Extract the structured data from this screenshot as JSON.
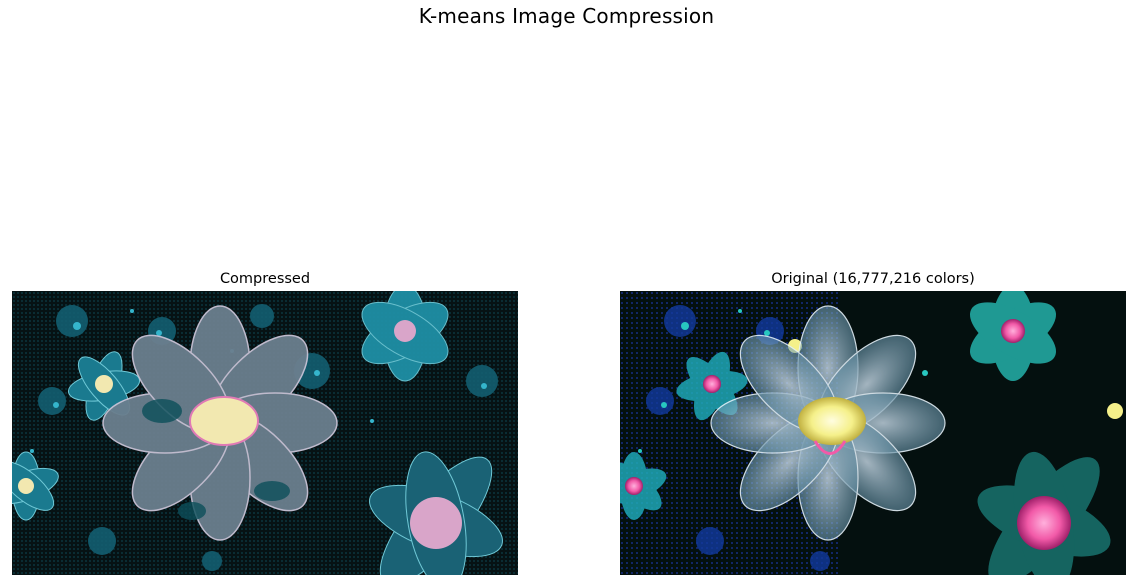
{
  "figure": {
    "suptitle": "K-means Image Compression"
  },
  "panels": {
    "compressed": {
      "title": "Compressed",
      "image_description": "posterized fractal flowers, limited teal/pink/cream palette"
    },
    "original": {
      "title": "Original (16,777,216 colors)",
      "image_description": "full-color fractal flowers with glowing teal, pink, yellow and blue tones"
    }
  },
  "colors": {
    "background_dark": "#061214",
    "teal": "#1f8fa5",
    "teal_light": "#6fc8d6",
    "petal_grey": "#6b7f8e",
    "pink": "#e07ab5",
    "cream": "#f2e8b0",
    "orig_teal": "#28c7c0",
    "orig_pink": "#f25aa8",
    "orig_yellow": "#f5f08a",
    "orig_blue": "#1f3fd0"
  }
}
